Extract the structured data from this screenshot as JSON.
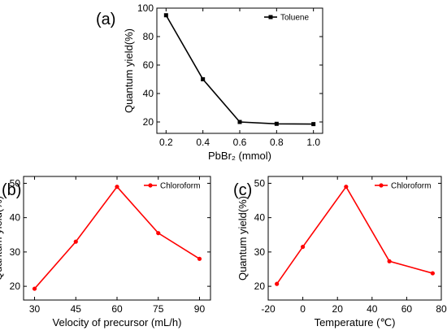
{
  "colors": {
    "black_series": "#000000",
    "red_series": "#ff0000"
  },
  "chart_data": [
    {
      "type": "line",
      "panel_label": "(a)",
      "xlabel": "PbBr₂ (mmol)",
      "ylabel": "Quantum yield(%)",
      "xlim": [
        0.15,
        1.05
      ],
      "ylim": [
        12,
        100
      ],
      "xticks": [
        0.2,
        0.4,
        0.6,
        0.8,
        1.0
      ],
      "xtick_labels": [
        "0.2",
        "0.4",
        "0.6",
        "0.8",
        "1.0"
      ],
      "yticks": [
        20,
        40,
        60,
        80,
        100
      ],
      "ytick_labels": [
        "20",
        "40",
        "60",
        "80",
        "100"
      ],
      "legend_position": "top-right",
      "grid": false,
      "series": [
        {
          "name": "Toluene",
          "color": "#000000",
          "marker": "square",
          "x": [
            0.2,
            0.4,
            0.6,
            0.8,
            1.0
          ],
          "y": [
            95,
            50,
            20,
            18.7,
            18.5
          ]
        }
      ]
    },
    {
      "type": "line",
      "panel_label": "(b)",
      "xlabel": "Velocity of precursor (mL/h)",
      "ylabel": "Quantum yield(%)",
      "xlim": [
        26,
        94
      ],
      "ylim": [
        16,
        52
      ],
      "xticks": [
        30,
        45,
        60,
        75,
        90
      ],
      "xtick_labels": [
        "30",
        "45",
        "60",
        "75",
        "90"
      ],
      "yticks": [
        20,
        30,
        40,
        50
      ],
      "ytick_labels": [
        "20",
        "30",
        "40",
        "50"
      ],
      "legend_position": "top-right",
      "grid": false,
      "series": [
        {
          "name": "Chloroform",
          "color": "#ff0000",
          "marker": "circle",
          "x": [
            30,
            45,
            60,
            75,
            90
          ],
          "y": [
            19.3,
            33,
            49,
            35.5,
            28
          ]
        }
      ]
    },
    {
      "type": "line",
      "panel_label": "(c)",
      "xlabel": "Temperature (℃)",
      "ylabel": "Quantum yield(%)",
      "xlim": [
        -20,
        80
      ],
      "ylim": [
        16,
        52
      ],
      "xticks": [
        -20,
        0,
        20,
        40,
        60,
        80
      ],
      "xtick_labels": [
        "-20",
        "0",
        "20",
        "40",
        "60",
        "80"
      ],
      "yticks": [
        20,
        30,
        40,
        50
      ],
      "ytick_labels": [
        "20",
        "30",
        "40",
        "50"
      ],
      "legend_position": "top-right",
      "grid": false,
      "series": [
        {
          "name": "Chloroform",
          "color": "#ff0000",
          "marker": "circle",
          "x": [
            -15,
            0,
            25,
            50,
            75
          ],
          "y": [
            20.7,
            31.5,
            49,
            27.3,
            23.8
          ]
        }
      ]
    }
  ]
}
